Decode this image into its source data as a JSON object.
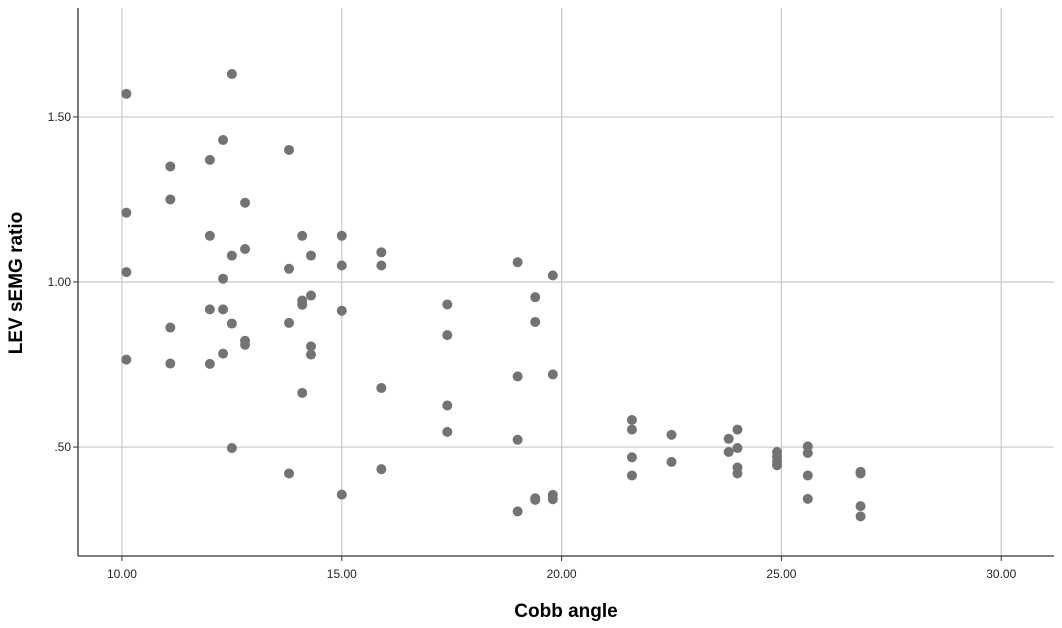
{
  "chart_data": {
    "type": "scatter",
    "title": "",
    "xlabel": "Cobb angle",
    "ylabel": "LEV sEMG ratio",
    "xlim": [
      9.0,
      31.2
    ],
    "ylim": [
      0.17,
      1.83
    ],
    "x_ticks": [
      10,
      15,
      20,
      25,
      30
    ],
    "x_tick_labels": [
      "10.00",
      "15.00",
      "20.00",
      "25.00",
      "30.00"
    ],
    "y_ticks": [
      0.5,
      1.0,
      1.5
    ],
    "y_tick_labels": [
      ".50",
      "1.00",
      "1.50"
    ],
    "grid": true,
    "marker_color": "#737373",
    "series": [
      {
        "points": [
          [
            10.1,
            1.57
          ],
          [
            10.1,
            1.21
          ],
          [
            10.1,
            1.03
          ],
          [
            10.1,
            0.765
          ],
          [
            11.1,
            1.35
          ],
          [
            11.1,
            1.25
          ],
          [
            11.1,
            0.862
          ],
          [
            11.1,
            0.753
          ],
          [
            12.0,
            1.37
          ],
          [
            12.0,
            1.14
          ],
          [
            12.0,
            0.917
          ],
          [
            12.0,
            0.752
          ],
          [
            12.3,
            1.43
          ],
          [
            12.3,
            1.01
          ],
          [
            12.3,
            0.917
          ],
          [
            12.3,
            0.783
          ],
          [
            12.5,
            1.63
          ],
          [
            12.5,
            1.08
          ],
          [
            12.5,
            0.874
          ],
          [
            12.5,
            0.497
          ],
          [
            12.8,
            1.24
          ],
          [
            12.8,
            1.1
          ],
          [
            12.8,
            0.822
          ],
          [
            12.8,
            0.81
          ],
          [
            13.8,
            1.4
          ],
          [
            13.8,
            1.04
          ],
          [
            13.8,
            0.876
          ],
          [
            13.8,
            0.42
          ],
          [
            14.1,
            1.14
          ],
          [
            14.1,
            0.944
          ],
          [
            14.1,
            0.931
          ],
          [
            14.1,
            0.664
          ],
          [
            14.3,
            1.08
          ],
          [
            14.3,
            0.959
          ],
          [
            14.3,
            0.805
          ],
          [
            14.3,
            0.78
          ],
          [
            15.0,
            1.14
          ],
          [
            15.0,
            1.05
          ],
          [
            15.0,
            0.913
          ],
          [
            15.0,
            0.356
          ],
          [
            15.9,
            1.09
          ],
          [
            15.9,
            1.05
          ],
          [
            15.9,
            0.679
          ],
          [
            15.9,
            0.433
          ],
          [
            17.4,
            0.932
          ],
          [
            17.4,
            0.839
          ],
          [
            17.4,
            0.626
          ],
          [
            17.4,
            0.546
          ],
          [
            19.0,
            1.06
          ],
          [
            19.0,
            0.714
          ],
          [
            19.0,
            0.522
          ],
          [
            19.0,
            0.305
          ],
          [
            19.4,
            0.954
          ],
          [
            19.4,
            0.879
          ],
          [
            19.4,
            0.345
          ],
          [
            19.4,
            0.34
          ],
          [
            19.8,
            1.02
          ],
          [
            19.8,
            0.72
          ],
          [
            19.8,
            0.355
          ],
          [
            19.8,
            0.342
          ],
          [
            21.6,
            0.582
          ],
          [
            21.6,
            0.553
          ],
          [
            21.6,
            0.469
          ],
          [
            21.6,
            0.414
          ],
          [
            22.5,
            0.537
          ],
          [
            22.5,
            0.455
          ],
          [
            23.8,
            0.525
          ],
          [
            23.8,
            0.485
          ],
          [
            24.0,
            0.553
          ],
          [
            24.0,
            0.497
          ],
          [
            24.0,
            0.438
          ],
          [
            24.0,
            0.42
          ],
          [
            24.9,
            0.485
          ],
          [
            24.9,
            0.471
          ],
          [
            24.9,
            0.456
          ],
          [
            24.9,
            0.445
          ],
          [
            25.6,
            0.502
          ],
          [
            25.6,
            0.482
          ],
          [
            25.6,
            0.414
          ],
          [
            25.6,
            0.343
          ],
          [
            26.8,
            0.425
          ],
          [
            26.8,
            0.42
          ],
          [
            26.8,
            0.321
          ],
          [
            26.8,
            0.29
          ]
        ]
      }
    ]
  }
}
